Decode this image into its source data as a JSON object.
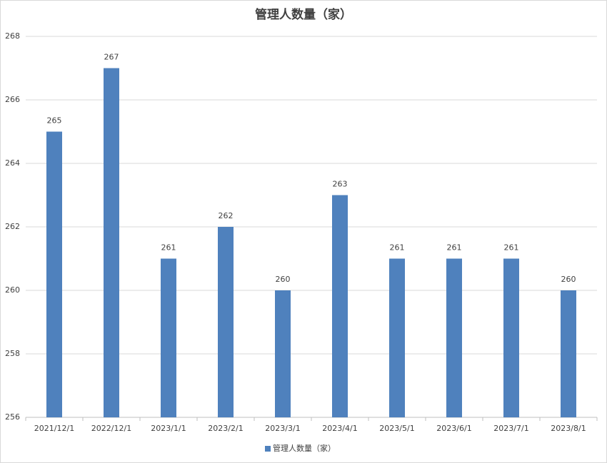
{
  "chart_data": {
    "type": "bar",
    "title": "管理人数量（家）",
    "categories": [
      "2021/12/1",
      "2022/12/1",
      "2023/1/1",
      "2023/2/1",
      "2023/3/1",
      "2023/4/1",
      "2023/5/1",
      "2023/6/1",
      "2023/7/1",
      "2023/8/1"
    ],
    "series": [
      {
        "name": "管理人数量（家）",
        "color": "#4f81bd",
        "values": [
          265,
          267,
          261,
          262,
          260,
          263,
          261,
          261,
          261,
          260
        ]
      }
    ],
    "ylim": [
      256,
      268
    ],
    "yticks": [
      256,
      258,
      260,
      262,
      264,
      266,
      268
    ],
    "grid": true,
    "legend": "bottom"
  }
}
